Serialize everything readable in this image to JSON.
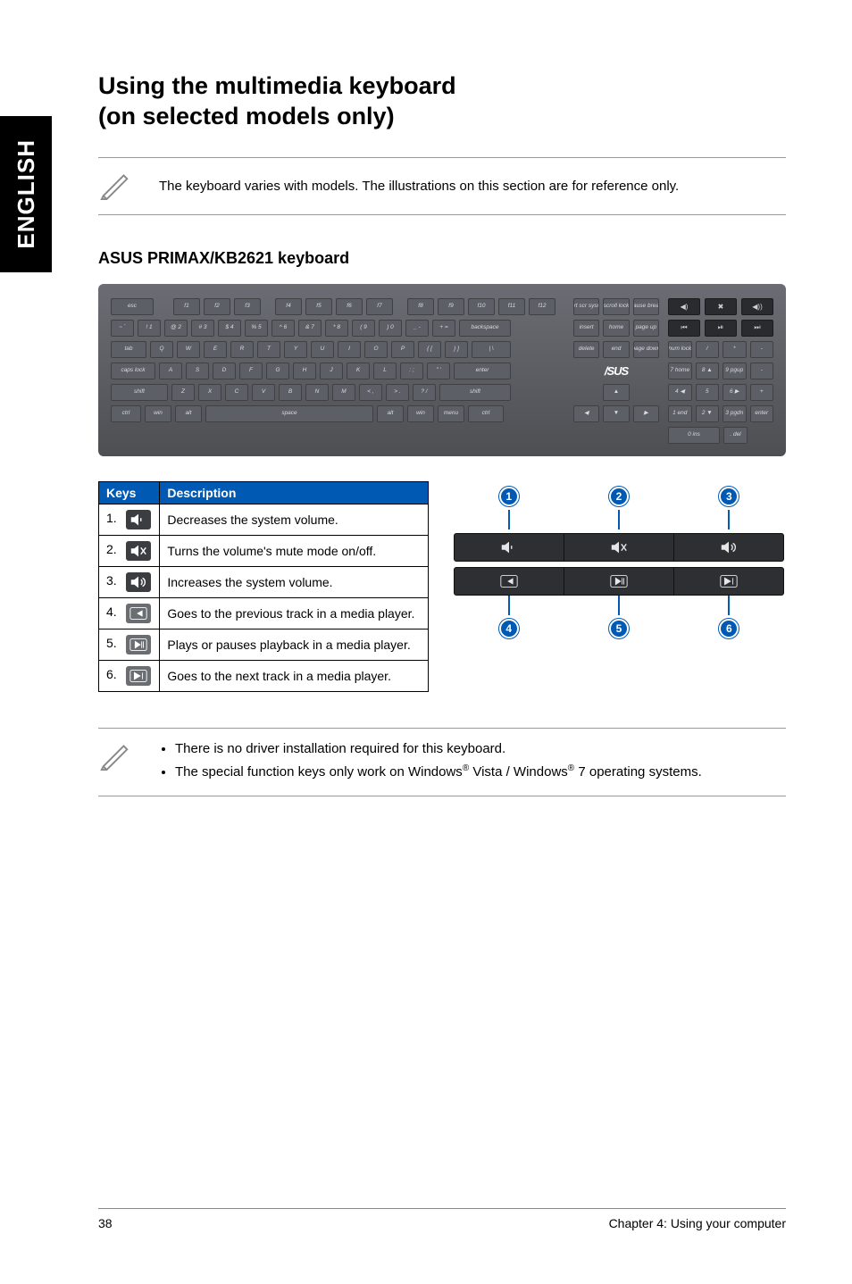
{
  "side_tab": "ENGLISH",
  "title_line1": "Using the multimedia keyboard",
  "title_line2": "(on selected models only)",
  "note1": "The keyboard varies with models. The illustrations on this section are for reference only.",
  "section_heading": "ASUS PRIMAX/KB2621 keyboard",
  "keyboard": {
    "row_fn": [
      "esc",
      "f1",
      "f2",
      "f3",
      "f4",
      "f5",
      "f6",
      "f7",
      "f8",
      "f9",
      "f10",
      "f11",
      "f12"
    ],
    "row_num": [
      "~ `",
      "! 1",
      "@ 2",
      "# 3",
      "$ 4",
      "% 5",
      "^ 6",
      "& 7",
      "* 8",
      "( 9",
      ") 0",
      "_ -",
      "+ =",
      "backspace"
    ],
    "row_q": [
      "tab",
      "Q",
      "W",
      "E",
      "R",
      "T",
      "Y",
      "U",
      "I",
      "O",
      "P",
      "{ [",
      "} ]",
      "| \\"
    ],
    "row_a": [
      "caps lock",
      "A",
      "S",
      "D",
      "F",
      "G",
      "H",
      "J",
      "K",
      "L",
      ": ;",
      "\" '",
      "enter"
    ],
    "row_z": [
      "shift",
      "Z",
      "X",
      "C",
      "V",
      "B",
      "N",
      "M",
      "< ,",
      "> .",
      "? /",
      "shift"
    ],
    "row_ctrl": [
      "ctrl",
      "win",
      "alt",
      "space",
      "alt",
      "win",
      "menu",
      "ctrl"
    ],
    "nav_top": [
      "prt scr sysrq",
      "scroll lock",
      "pause break"
    ],
    "nav_mid1": [
      "insert",
      "home",
      "page up"
    ],
    "nav_mid2": [
      "delete",
      "end",
      "page down"
    ],
    "nav_arrows_up": [
      "▲"
    ],
    "nav_arrows_lr": [
      "◀",
      "▼",
      "▶"
    ],
    "num_top_media": [
      "◀)",
      "✖",
      "◀))"
    ],
    "num_r0": [
      "⏮",
      "⏯",
      "⏭"
    ],
    "num_r1": [
      "num lock",
      "/",
      "*",
      "-"
    ],
    "num_r2": [
      "7 home",
      "8 ▲",
      "9 pgup",
      "-"
    ],
    "num_r3": [
      "4 ◀",
      "5",
      "6 ▶",
      "+"
    ],
    "num_r4": [
      "1 end",
      "2 ▼",
      "3 pgdn",
      "enter"
    ],
    "num_r5": [
      "0 ins",
      ". del"
    ],
    "logo": "/SUS"
  },
  "table": {
    "header_keys": "Keys",
    "header_desc": "Description",
    "rows": [
      {
        "num": "1.",
        "icon": "vol-down",
        "desc": "Decreases the system volume."
      },
      {
        "num": "2.",
        "icon": "mute",
        "desc": "Turns the volume's mute mode on/off."
      },
      {
        "num": "3.",
        "icon": "vol-up",
        "desc": "Increases the system volume."
      },
      {
        "num": "4.",
        "icon": "prev",
        "desc": "Goes to the previous track in a media player."
      },
      {
        "num": "5.",
        "icon": "play",
        "desc": "Plays or pauses playback in a media player."
      },
      {
        "num": "6.",
        "icon": "next",
        "desc": "Goes to the next track in a media player."
      }
    ]
  },
  "callouts": {
    "top": [
      "1",
      "2",
      "3"
    ],
    "bottom": [
      "4",
      "5",
      "6"
    ],
    "top_icons": [
      "vol-down",
      "mute",
      "vol-up"
    ],
    "bottom_icons": [
      "prev",
      "play",
      "next"
    ]
  },
  "notes2": {
    "a": "There is no driver installation required for this keyboard.",
    "b_pre": "The special function keys only work on Windows",
    "b_mid": " Vista / Windows",
    "b_post": " 7 operating systems."
  },
  "footer": {
    "page": "38",
    "chapter": "Chapter 4: Using your computer"
  },
  "colors": {
    "accent_blue": "#0059b3",
    "kb_bg_top": "#6a6d73",
    "kb_bg_bottom": "#4d4f53",
    "key_bg": "#5c5f65",
    "media_bg": "#2a2b2e"
  }
}
